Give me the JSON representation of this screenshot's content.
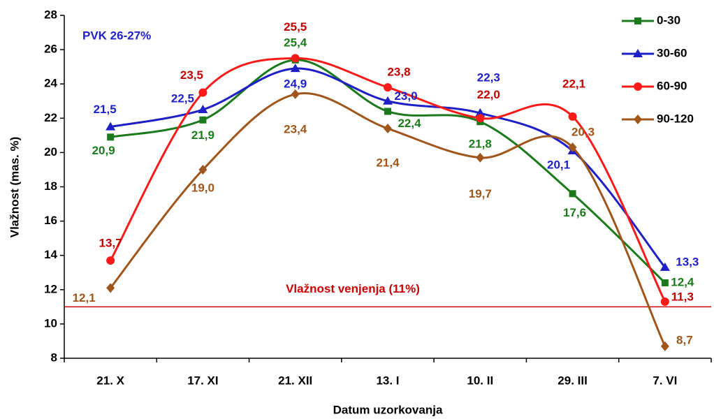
{
  "chart_data": {
    "type": "line",
    "x_label": "Datum uzorkovanja",
    "y_label": "Vlažnost (mas. %)",
    "categories": [
      "21. X",
      "17. XI",
      "21. XII",
      "13. I",
      "10. II",
      "29. III",
      "7. VI"
    ],
    "series": [
      {
        "name": "0-30",
        "color": "#1b7a1b",
        "label_color": "#1b7a1b",
        "marker": "square",
        "values": [
          20.9,
          21.9,
          25.4,
          22.4,
          21.8,
          17.6,
          12.4
        ],
        "value_labels": [
          "20,9",
          "21,9",
          "25,4",
          "22,4",
          "21,8",
          "17,6",
          "12,4"
        ]
      },
      {
        "name": "30-60",
        "color": "#1f1fc8",
        "label_color": "#1f1fc8",
        "marker": "triangle",
        "values": [
          21.5,
          22.5,
          24.9,
          23.0,
          22.3,
          20.1,
          13.3
        ],
        "value_labels": [
          "21,5",
          "22,5",
          "24,9",
          "23,0",
          "22,3",
          "20,1",
          "13,3"
        ]
      },
      {
        "name": "60-90",
        "color": "#ff1a1a",
        "label_color": "#c00000",
        "marker": "circle",
        "values": [
          13.7,
          23.5,
          25.5,
          23.8,
          22.0,
          22.1,
          11.3
        ],
        "value_labels": [
          "13,7",
          "23,5",
          "25,5",
          "23,8",
          "22,0",
          "22,1",
          "11,3"
        ]
      },
      {
        "name": "90-120",
        "color": "#a0561a",
        "label_color": "#a0561a",
        "marker": "diamond",
        "values": [
          12.1,
          19.0,
          23.4,
          21.4,
          19.7,
          20.3,
          8.7
        ],
        "value_labels": [
          "12,1",
          "19,0",
          "23,4",
          "21,4",
          "19,7",
          "20,3",
          "8,7"
        ]
      }
    ],
    "ylim": [
      8,
      28
    ],
    "yticks": [
      8,
      10,
      12,
      14,
      16,
      18,
      20,
      22,
      24,
      26,
      28
    ],
    "reference_line": {
      "value": 11,
      "label": "Vlažnost venjenja (11%)",
      "color": "#cc0000"
    },
    "annotation": {
      "text": "PVK 26-27%",
      "color": "#1f1fc8"
    },
    "legend": "top-right",
    "smooth": true
  }
}
